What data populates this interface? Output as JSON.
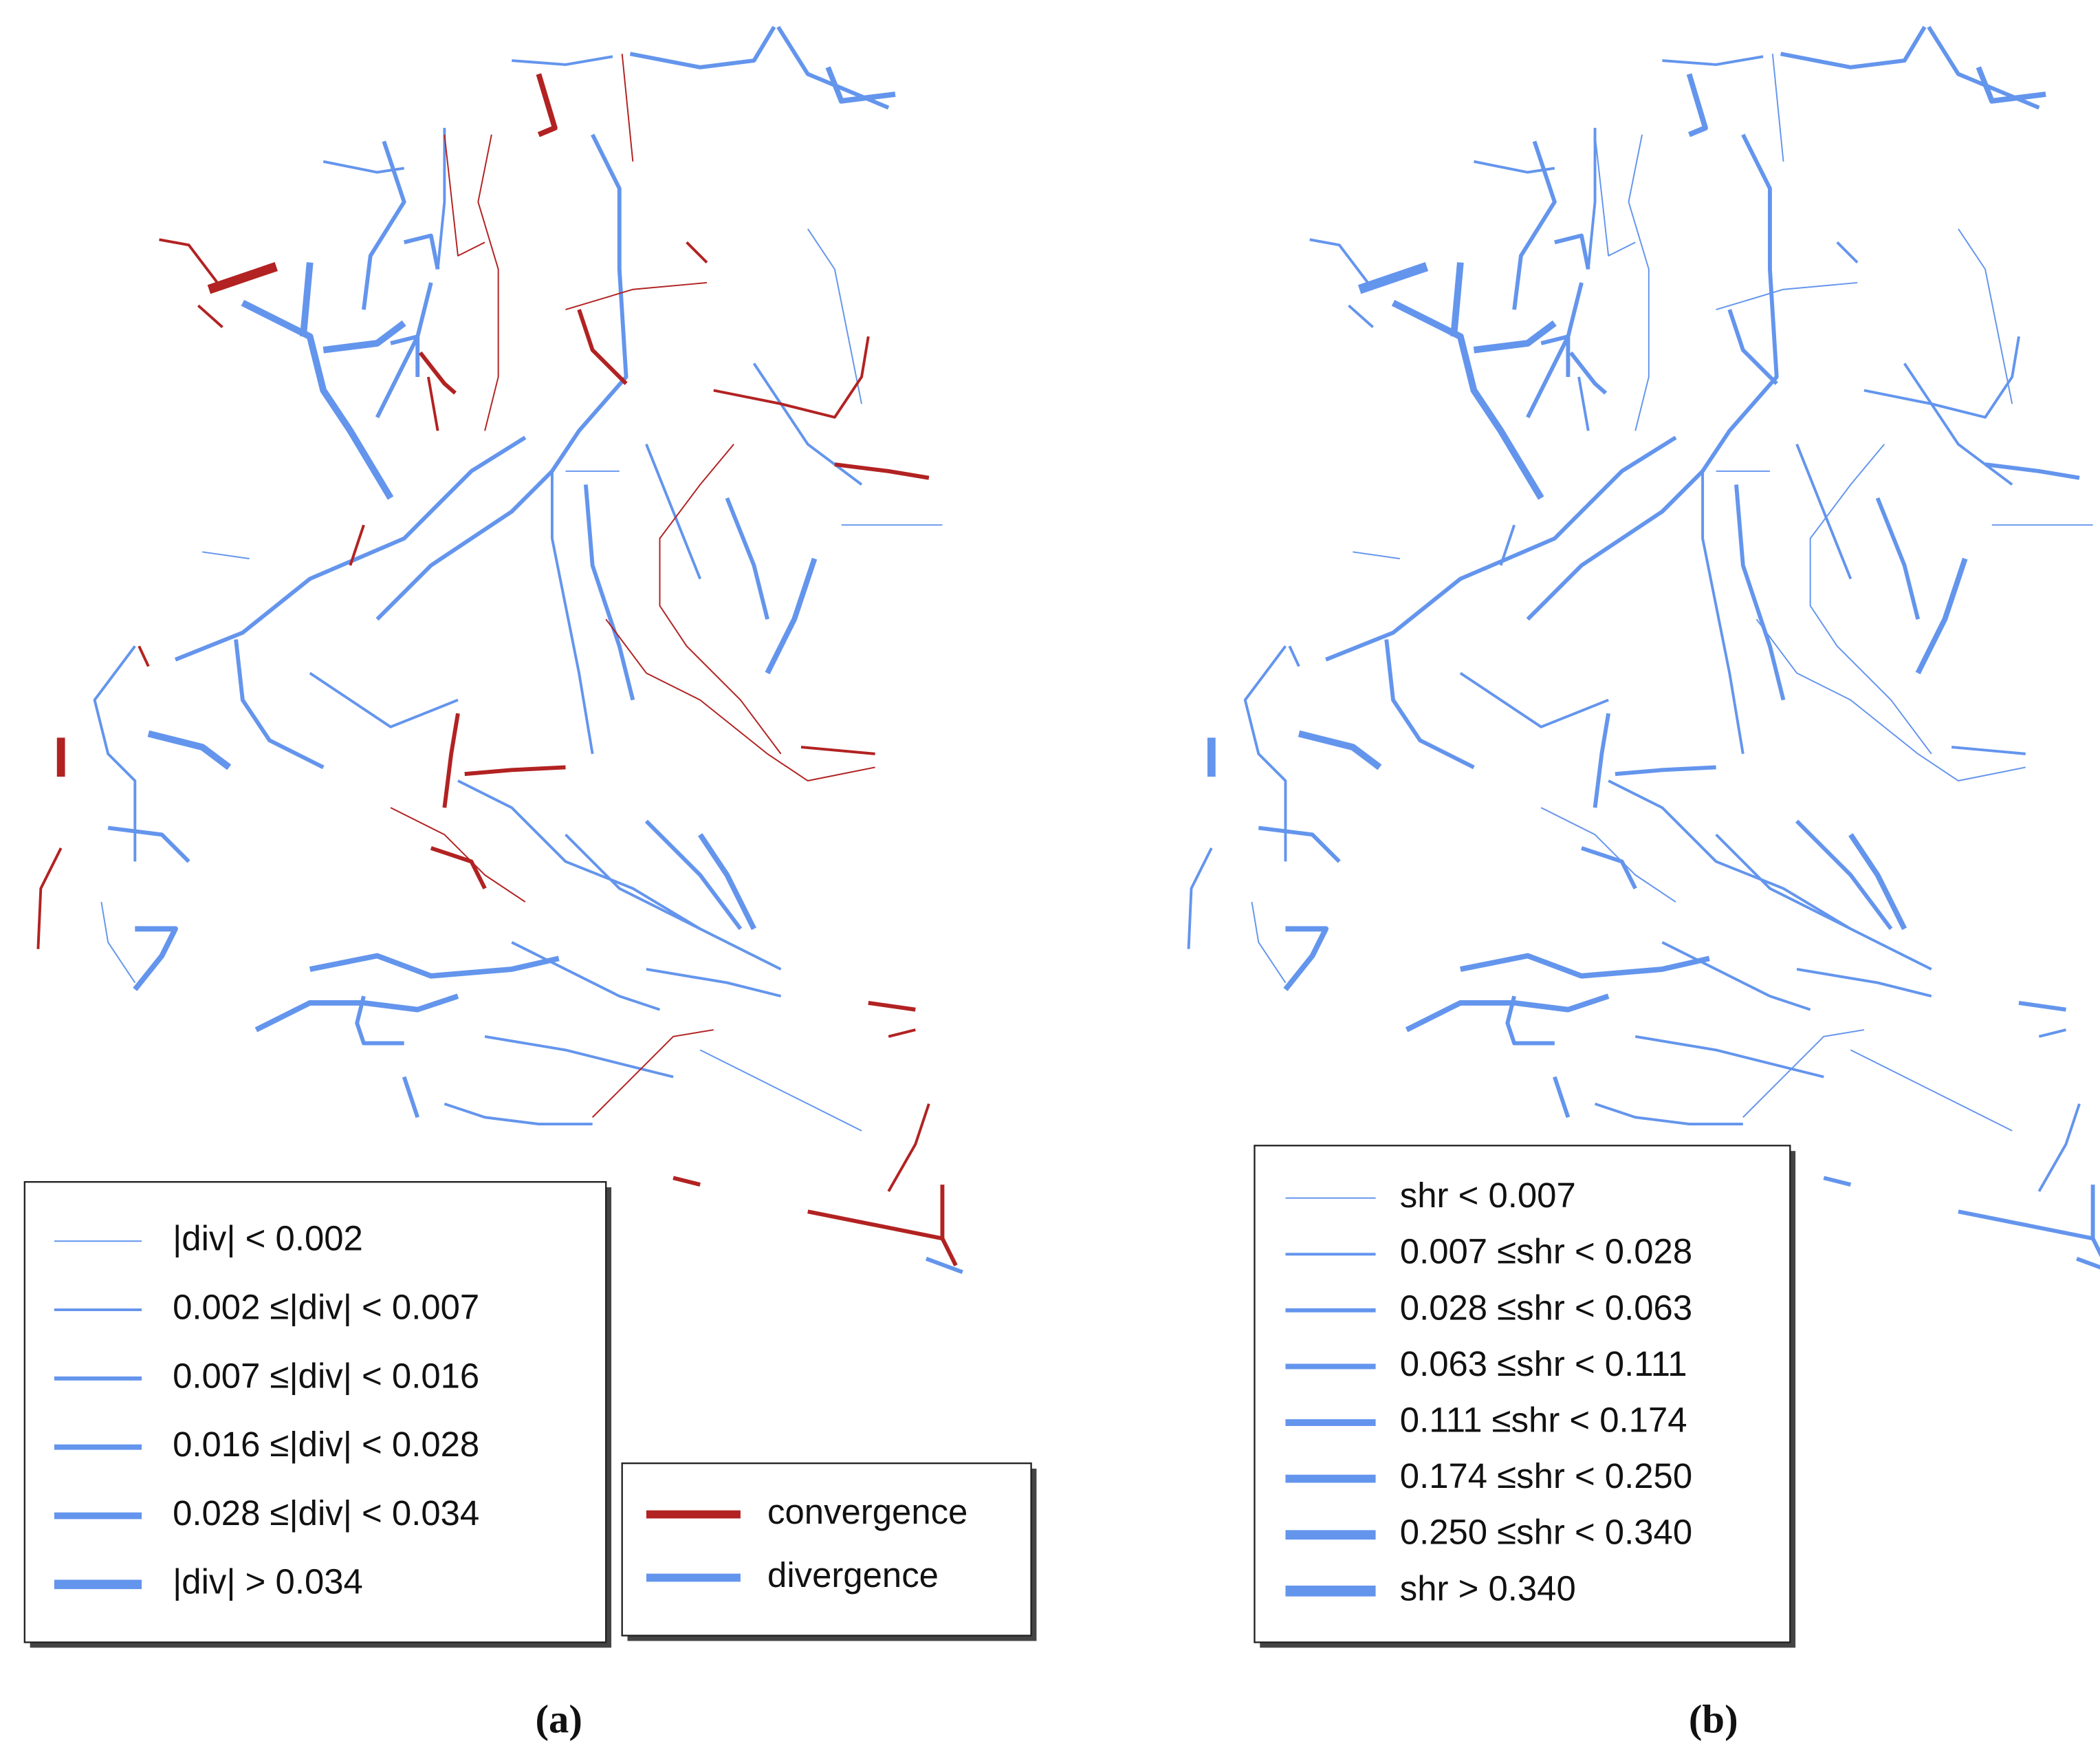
{
  "panels": [
    {
      "caption": "(a)",
      "legend": [
        "|div| < 0.002",
        "0.002 ≤|div| < 0.007",
        "0.007 ≤|div| < 0.016",
        "0.016 ≤|div| < 0.028",
        "0.028 ≤|div| < 0.034",
        "|div| > 0.034"
      ],
      "types": [
        "convergence",
        "divergence"
      ]
    },
    {
      "caption": "(b)",
      "legend": [
        "shr < 0.007",
        "0.007 ≤shr < 0.028",
        "0.028 ≤shr < 0.063",
        "0.063 ≤shr < 0.111",
        "0.111 ≤shr < 0.174",
        "0.174 ≤shr < 0.250",
        "0.250 ≤shr < 0.340",
        "shr > 0.340"
      ]
    }
  ]
}
